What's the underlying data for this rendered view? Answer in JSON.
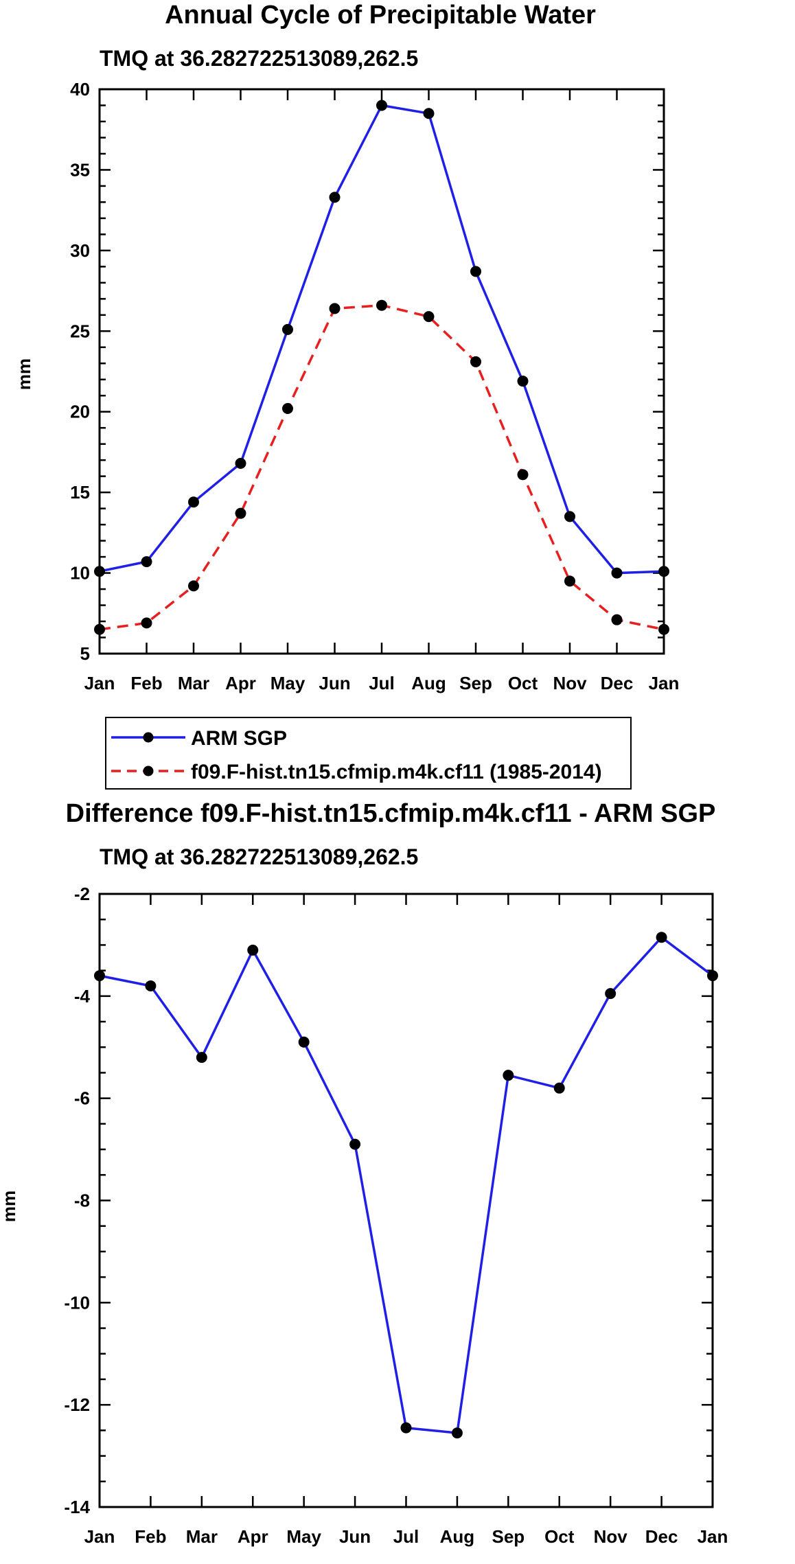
{
  "chart_data": [
    {
      "type": "line",
      "title": "Annual Cycle of Precipitable Water",
      "subtitle": "TMQ at 36.282722513089,262.5",
      "xlabel": "",
      "ylabel": "mm",
      "categories": [
        "Jan",
        "Feb",
        "Mar",
        "Apr",
        "May",
        "Jun",
        "Jul",
        "Aug",
        "Sep",
        "Oct",
        "Nov",
        "Dec",
        "Jan"
      ],
      "ylim": [
        5,
        40
      ],
      "yticks": [
        "5",
        "10",
        "15",
        "20",
        "25",
        "30",
        "35",
        "40"
      ],
      "series": [
        {
          "name": "ARM SGP",
          "color": "#1f1fe6",
          "dash": "solid",
          "values": [
            10.1,
            10.7,
            14.4,
            16.8,
            25.1,
            33.3,
            39.0,
            38.5,
            28.7,
            21.9,
            13.5,
            10.0,
            10.1
          ]
        },
        {
          "name": "f09.F-hist.tn15.cfmip.m4k.cf11 (1985-2014)",
          "color": "#e61f1f",
          "dash": "dashed",
          "values": [
            6.5,
            6.9,
            9.2,
            13.7,
            20.2,
            26.4,
            26.6,
            25.9,
            23.1,
            16.1,
            9.5,
            7.1,
            6.5
          ]
        }
      ],
      "legend_position": "below"
    },
    {
      "type": "line",
      "title": "Difference f09.F-hist.tn15.cfmip.m4k.cf11 - ARM SGP",
      "subtitle": "TMQ at 36.282722513089,262.5",
      "xlabel": "",
      "ylabel": "mm",
      "categories": [
        "Jan",
        "Feb",
        "Mar",
        "Apr",
        "May",
        "Jun",
        "Jul",
        "Aug",
        "Sep",
        "Oct",
        "Nov",
        "Dec",
        "Jan"
      ],
      "ylim": [
        -14,
        -2
      ],
      "yticks": [
        "-14",
        "-12",
        "-10",
        "-8",
        "-6",
        "-4",
        "-2"
      ],
      "series": [
        {
          "name": "Difference",
          "color": "#1f1fe6",
          "dash": "solid",
          "values": [
            -3.6,
            -3.8,
            -5.2,
            -3.1,
            -4.9,
            -6.9,
            -12.45,
            -12.55,
            -5.55,
            -5.8,
            -3.95,
            -2.85,
            -3.6
          ]
        }
      ]
    }
  ]
}
